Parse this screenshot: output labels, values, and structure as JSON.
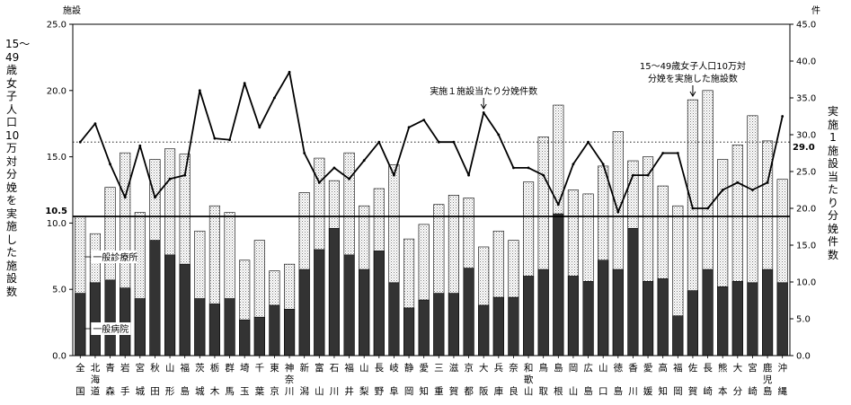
{
  "chart_data": {
    "type": "bar",
    "ylabel_left": "15〜49歳女子人口10万対分娩を実施した施設数",
    "ylabel_right": "実施1施設当たり分娩件数",
    "left_unit": "施設",
    "right_unit": "件",
    "ylim_left": [
      0,
      25
    ],
    "ylim_right": [
      0,
      45
    ],
    "left_ticks": [
      "0.0",
      "5.0",
      "10.0",
      "15.0",
      "20.0",
      "25.0"
    ],
    "right_ticks": [
      "0.0",
      "5.0",
      "10.0",
      "15.0",
      "20.0",
      "25.0",
      "30.0",
      "35.0",
      "40.0",
      "45.0"
    ],
    "categories": [
      [
        "全",
        "国"
      ],
      [
        "北",
        "海",
        "道"
      ],
      [
        "青",
        "森"
      ],
      [
        "岩",
        "手"
      ],
      [
        "宮",
        "城"
      ],
      [
        "秋",
        "田"
      ],
      [
        "山",
        "形"
      ],
      [
        "福",
        "島"
      ],
      [
        "茨",
        "城"
      ],
      [
        "栃",
        "木"
      ],
      [
        "群",
        "馬"
      ],
      [
        "埼",
        "玉"
      ],
      [
        "千",
        "葉"
      ],
      [
        "東",
        "京"
      ],
      [
        "神",
        "奈",
        "川"
      ],
      [
        "新",
        "潟"
      ],
      [
        "富",
        "山"
      ],
      [
        "石",
        "川"
      ],
      [
        "福",
        "井"
      ],
      [
        "山",
        "梨"
      ],
      [
        "長",
        "野"
      ],
      [
        "岐",
        "阜"
      ],
      [
        "静",
        "岡"
      ],
      [
        "愛",
        "知"
      ],
      [
        "三",
        "重"
      ],
      [
        "滋",
        "賀"
      ],
      [
        "京",
        "都"
      ],
      [
        "大",
        "阪"
      ],
      [
        "兵",
        "庫"
      ],
      [
        "奈",
        "良"
      ],
      [
        "和",
        "歌",
        "山"
      ],
      [
        "鳥",
        "取"
      ],
      [
        "島",
        "根"
      ],
      [
        "岡",
        "山"
      ],
      [
        "広",
        "島"
      ],
      [
        "山",
        "口"
      ],
      [
        "徳",
        "島"
      ],
      [
        "香",
        "川"
      ],
      [
        "愛",
        "媛"
      ],
      [
        "高",
        "知"
      ],
      [
        "福",
        "岡"
      ],
      [
        "佐",
        "賀"
      ],
      [
        "長",
        "崎"
      ],
      [
        "熊",
        "本"
      ],
      [
        "大",
        "分"
      ],
      [
        "宮",
        "崎"
      ],
      [
        "鹿",
        "児",
        "島"
      ],
      [
        "沖",
        "縄"
      ]
    ],
    "series": [
      {
        "name": "一般病院",
        "axis": "left",
        "values": [
          4.7,
          5.5,
          5.7,
          5.1,
          4.3,
          8.7,
          7.6,
          6.9,
          4.3,
          3.9,
          4.3,
          2.7,
          2.9,
          3.8,
          3.5,
          6.5,
          8.0,
          9.6,
          7.6,
          6.5,
          7.9,
          5.5,
          3.6,
          4.2,
          4.7,
          4.7,
          6.6,
          3.8,
          4.4,
          4.4,
          6.0,
          6.5,
          10.7,
          6.0,
          5.6,
          7.2,
          6.5,
          9.6,
          5.6,
          5.8,
          3.0,
          4.9,
          6.5,
          5.2,
          5.6,
          5.5,
          6.5,
          5.5
        ]
      },
      {
        "name": "一般診療所",
        "axis": "left",
        "values": [
          5.8,
          3.7,
          7.0,
          10.2,
          6.5,
          6.1,
          8.0,
          8.3,
          5.1,
          7.4,
          6.5,
          4.5,
          5.8,
          2.6,
          3.4,
          5.8,
          6.9,
          3.6,
          7.7,
          4.8,
          4.7,
          8.9,
          5.2,
          5.7,
          6.7,
          7.4,
          5.3,
          4.4,
          5.0,
          4.3,
          7.1,
          10.0,
          8.2,
          6.5,
          6.6,
          7.1,
          10.4,
          5.1,
          9.4,
          7.0,
          8.3,
          14.4,
          13.5,
          9.6,
          10.3,
          12.6,
          9.7,
          7.8
        ]
      },
      {
        "name": "15〜49歳女子人口10万対分娩を実施した施設数",
        "axis": "left",
        "values": [
          10.5,
          9.2,
          12.7,
          15.3,
          10.8,
          14.8,
          15.6,
          15.2,
          9.4,
          11.3,
          10.8,
          7.2,
          8.7,
          6.4,
          6.9,
          12.3,
          14.9,
          13.2,
          15.3,
          11.3,
          12.6,
          14.4,
          8.8,
          9.9,
          11.4,
          12.1,
          11.9,
          8.2,
          9.4,
          8.7,
          13.1,
          16.5,
          18.9,
          12.5,
          12.2,
          14.3,
          16.9,
          14.7,
          15.0,
          12.8,
          11.3,
          19.3,
          20.0,
          14.8,
          15.9,
          18.1,
          16.2,
          13.3
        ]
      },
      {
        "name": "実施1施設当たり分娩件数",
        "axis": "right",
        "type": "line",
        "values": [
          29.0,
          31.5,
          26.0,
          21.5,
          28.5,
          21.5,
          24.0,
          24.5,
          36.0,
          29.5,
          29.3,
          37.0,
          31.0,
          35.0,
          38.5,
          27.5,
          23.5,
          25.5,
          24.0,
          26.5,
          29.0,
          24.5,
          31.0,
          32.0,
          29.0,
          29.0,
          24.5,
          33.0,
          30.0,
          25.5,
          25.5,
          24.5,
          20.5,
          26.0,
          29.0,
          26.0,
          19.5,
          24.5,
          24.5,
          27.5,
          27.5,
          20.0,
          20.0,
          22.5,
          23.5,
          22.5,
          23.5,
          32.5
        ]
      }
    ],
    "reference_lines": [
      {
        "axis": "left",
        "value": 10.5,
        "label": "10.5",
        "style": "solid"
      },
      {
        "axis": "right",
        "value": 29.0,
        "label": "29.0",
        "style": "dotted"
      }
    ],
    "annotations": [
      {
        "text": "実施１施設当たり分娩件数",
        "target_index": 27
      },
      {
        "text_lines": [
          "15〜49歳女子人口10万対",
          "分娩を実施した施設数"
        ],
        "target_index": 41
      },
      {
        "text": "一般診療所",
        "target_index": 0
      },
      {
        "text": "一般病院",
        "target_index": 0
      }
    ],
    "colors": {
      "hospital": "#333333",
      "clinic": "#e2e2e2",
      "line": "#000000"
    }
  }
}
